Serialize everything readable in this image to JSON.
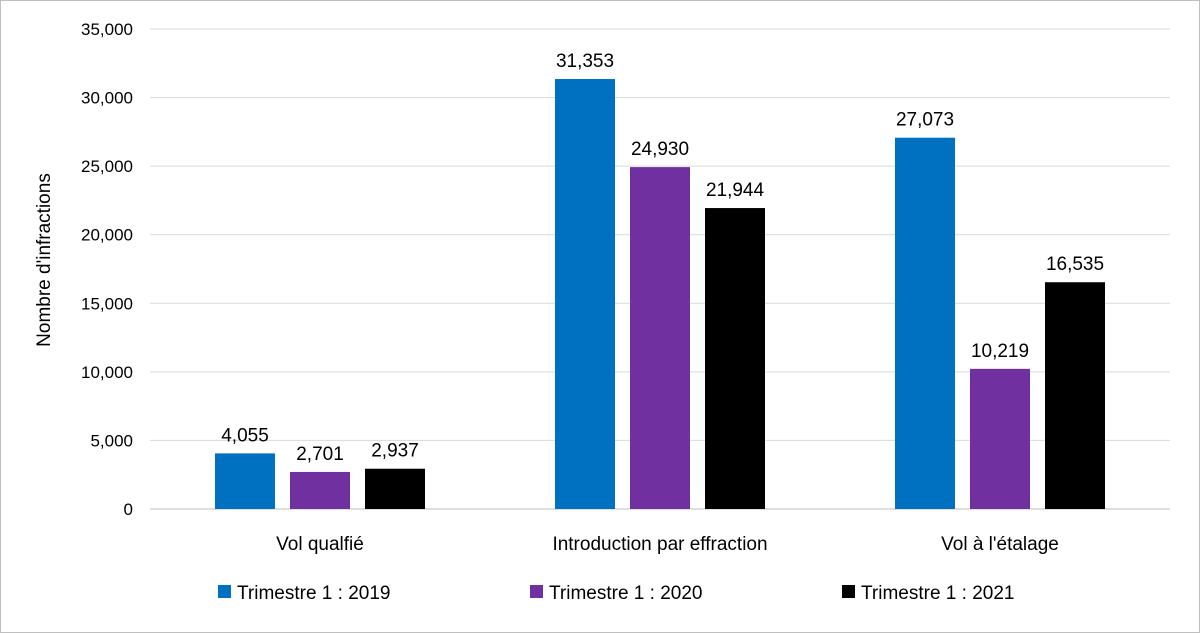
{
  "chart_data": {
    "type": "bar",
    "title": "",
    "xlabel": "",
    "ylabel": "Nombre d'infractions",
    "ylim": [
      0,
      35000
    ],
    "yticks": [
      0,
      5000,
      10000,
      15000,
      20000,
      25000,
      30000,
      35000
    ],
    "ytick_labels": [
      "0",
      "5,000",
      "10,000",
      "15,000",
      "20,000",
      "25,000",
      "30,000",
      "35,000"
    ],
    "grid": true,
    "legend_position": "bottom",
    "categories": [
      "Vol qualfié",
      "Introduction par effraction",
      "Vol à l'étalage"
    ],
    "series": [
      {
        "name": "Trimestre 1 : 2019",
        "color": "#0070C0",
        "values": [
          4055,
          31353,
          27073
        ],
        "labels": [
          "4,055",
          "31,353",
          "27,073"
        ]
      },
      {
        "name": "Trimestre 1 : 2020",
        "color": "#7030A0",
        "values": [
          2701,
          24930,
          10219
        ],
        "labels": [
          "2,701",
          "24,930",
          "10,219"
        ]
      },
      {
        "name": "Trimestre 1 : 2021",
        "color": "#000000",
        "values": [
          2937,
          21944,
          16535
        ],
        "labels": [
          "2,937",
          "21,944",
          "16,535"
        ]
      }
    ]
  }
}
